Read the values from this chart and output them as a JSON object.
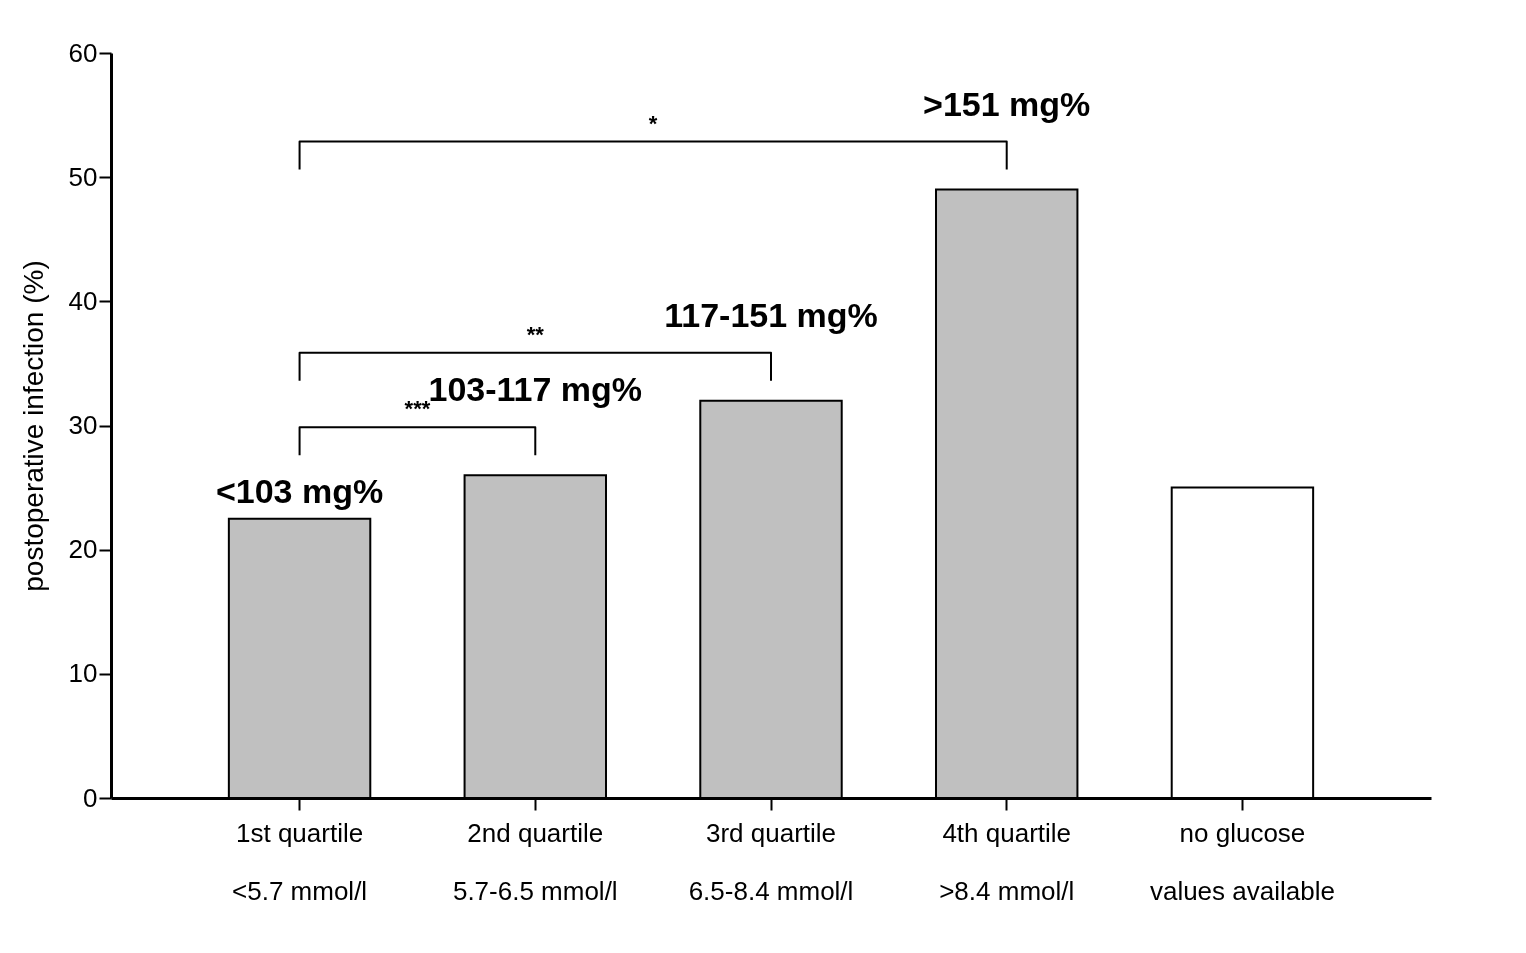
{
  "chart_data": {
    "type": "bar",
    "ylabel": "postoperative infection (%)",
    "categories": [
      "1st quartile\n<5.7 mmol/l",
      "2nd quartile\n5.7-6.5 mmol/l",
      "3rd quartile\n6.5-8.4 mmol/l",
      "4th quartile\n>8.4 mmol/l",
      "no glucose\nvalues available"
    ],
    "values": [
      22.5,
      26,
      32,
      49,
      25
    ],
    "colors": [
      "#c0c0c0",
      "#c0c0c0",
      "#c0c0c0",
      "#c0c0c0",
      "#ffffff"
    ],
    "ylim": [
      0,
      60
    ],
    "yticks": [
      0,
      10,
      20,
      30,
      40,
      50,
      60
    ],
    "annotations": [
      "*",
      "**",
      "***",
      {
        "text": "<103 mg%",
        "x": "1st quartile\n<5.7 mmol/l",
        "y": 22.5
      },
      {
        "text": "103-117 mg%",
        "x": "2nd quartile\n5.7-6.5 mmol/l",
        "y": 26
      },
      {
        "text": "117-151 mg%",
        "x": "3rd quartile\n6.5-8.4 mmol/l",
        "y": 32
      },
      {
        "text": ">151 mg%",
        "x": "4th quartile\n>8.4 mmol/l",
        "y": 49
      }
    ]
  }
}
